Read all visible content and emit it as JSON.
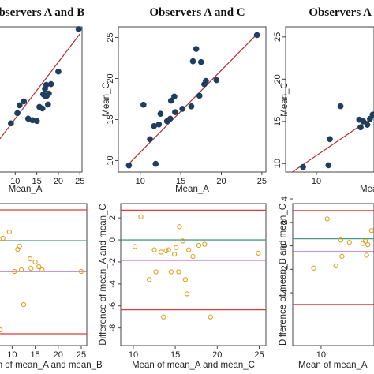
{
  "titles": [
    "Observers A and B",
    "Observers A and C",
    "Observers A and D"
  ],
  "chart_data": [
    {
      "type": "scatter",
      "panel": "scatter-AB",
      "title": "Observers A and B",
      "xlabel": "Mean_A",
      "ylabel": "",
      "xlim": [
        5,
        25.5
      ],
      "ylim": [
        8,
        26.5
      ],
      "xticks": [
        10,
        15,
        20,
        25
      ],
      "yticks": [],
      "points": [
        [
          9,
          14.2
        ],
        [
          10.5,
          15.5
        ],
        [
          11,
          16.5
        ],
        [
          12,
          17
        ],
        [
          13,
          14.8
        ],
        [
          14,
          14.6
        ],
        [
          15,
          14.5
        ],
        [
          15.6,
          16.3
        ],
        [
          16.3,
          16.1
        ],
        [
          16.5,
          17.9
        ],
        [
          16.9,
          17.7
        ],
        [
          16.9,
          18.6
        ],
        [
          17.2,
          19.1
        ],
        [
          17.3,
          17.7
        ],
        [
          17.6,
          16.6
        ],
        [
          17.8,
          18
        ],
        [
          18.3,
          19.2
        ],
        [
          20,
          20.8
        ],
        [
          24.7,
          26.2
        ]
      ],
      "line": [
        [
          5,
          11.2
        ],
        [
          25,
          25.6
        ]
      ]
    },
    {
      "type": "scatter",
      "panel": "scatter-AC",
      "title": "Observers A and C",
      "xlabel": "Mean_A",
      "ylabel": "Mean_C",
      "xlim": [
        7.3,
        25.5
      ],
      "ylim": [
        8.6,
        26.3
      ],
      "xticks": [
        10,
        15,
        20,
        25
      ],
      "yticks": [
        10,
        15,
        20,
        25
      ],
      "points": [
        [
          8.6,
          9.4
        ],
        [
          10.4,
          16.8
        ],
        [
          11.2,
          12.6
        ],
        [
          11.7,
          14.2
        ],
        [
          11.9,
          9.6
        ],
        [
          12.3,
          14.4
        ],
        [
          12.5,
          15.7
        ],
        [
          13.3,
          14.8
        ],
        [
          13.7,
          15.1
        ],
        [
          13.8,
          17.3
        ],
        [
          14.2,
          17.8
        ],
        [
          14.3,
          15.9
        ],
        [
          15.2,
          16.3
        ],
        [
          16.3,
          16.6
        ],
        [
          16.5,
          22.1
        ],
        [
          16.9,
          23.6
        ],
        [
          17.3,
          17.9
        ],
        [
          17.5,
          22
        ],
        [
          17.9,
          19.3
        ],
        [
          18.1,
          19.7
        ],
        [
          19.4,
          19.8
        ],
        [
          24.4,
          25.3
        ]
      ],
      "line": [
        [
          8.6,
          9.6
        ],
        [
          24.4,
          25.4
        ]
      ]
    },
    {
      "type": "scatter",
      "panel": "scatter-AD",
      "title": "Observers A and D",
      "xlabel": "Mean_A",
      "ylabel": "Mean_C",
      "xlim": [
        7.7,
        14.3
      ],
      "ylim": [
        9,
        26.2
      ],
      "xticks": [
        10
      ],
      "yticks": [
        10,
        15,
        20,
        25
      ],
      "points": [
        [
          9,
          9.6
        ],
        [
          10.9,
          9.8
        ],
        [
          11,
          12.9
        ],
        [
          11.8,
          16.8
        ],
        [
          13.2,
          15.2
        ],
        [
          13.3,
          14.3
        ],
        [
          13.5,
          15
        ],
        [
          13.8,
          14.6
        ],
        [
          14,
          15.3
        ],
        [
          14.2,
          15.8
        ]
      ],
      "line": [
        [
          8.2,
          9
        ],
        [
          14.3,
          15.6
        ]
      ]
    },
    {
      "type": "scatter",
      "panel": "diff-AB",
      "title": "",
      "xlabel": "Mean of mean_A and mean_B",
      "ylabel": "",
      "xlim": [
        6,
        26.2
      ],
      "ylim": [
        -6,
        3
      ],
      "xticks": [
        10,
        15,
        20,
        25
      ],
      "yticks": [],
      "hlines": [
        {
          "y": 2.6,
          "color": "#e03a3a"
        },
        {
          "y": 0.65,
          "color": "#4e9a8a"
        },
        {
          "y": -1.3,
          "color": "#b04fc8"
        },
        {
          "y": -5.25,
          "color": "#e03a3a"
        }
      ],
      "points": [
        [
          6.5,
          -3.8
        ],
        [
          6.4,
          -2.5
        ],
        [
          6.6,
          -1.6
        ],
        [
          7.4,
          -5
        ],
        [
          8,
          0.8
        ],
        [
          9.4,
          1.2
        ],
        [
          10.5,
          -1.3
        ],
        [
          11.2,
          0.1
        ],
        [
          11.6,
          0.3
        ],
        [
          12,
          -1.2
        ],
        [
          12.5,
          -3.4
        ],
        [
          13.9,
          -0.5
        ],
        [
          14.1,
          -1.1
        ],
        [
          15,
          -0.7
        ],
        [
          15.8,
          -1
        ],
        [
          16.5,
          -1.2
        ],
        [
          25,
          -1.3
        ]
      ]
    },
    {
      "type": "scatter",
      "panel": "diff-AC",
      "title": "",
      "xlabel": "Mean of mean_A and mean_C",
      "ylabel": "Difference of mean_A and mean_C",
      "xlim": [
        8.5,
        25.8
      ],
      "ylim": [
        -9.6,
        3.3
      ],
      "xticks": [
        10,
        15,
        20,
        25
      ],
      "yticks": [
        -8,
        -6,
        -4,
        -2,
        0,
        2
      ],
      "hlines": [
        {
          "y": 2.7,
          "color": "#e03a3a"
        },
        {
          "y": 0,
          "color": "#4e9a8a"
        },
        {
          "y": -1.85,
          "color": "#b04fc8"
        },
        {
          "y": -6.35,
          "color": "#e03a3a"
        }
      ],
      "points": [
        [
          10.2,
          -0.6
        ],
        [
          10.9,
          2.1
        ],
        [
          11.9,
          -3.6
        ],
        [
          12.5,
          -0.9
        ],
        [
          12.7,
          -2.9
        ],
        [
          13.3,
          -1.1
        ],
        [
          13.6,
          -7
        ],
        [
          13.9,
          -1
        ],
        [
          14.2,
          -0.9
        ],
        [
          14.5,
          -2.9
        ],
        [
          14.9,
          -1.3
        ],
        [
          15.1,
          -0.7
        ],
        [
          15.4,
          -2.9
        ],
        [
          15.5,
          1.2
        ],
        [
          15.9,
          -0.1
        ],
        [
          16.2,
          -3.6
        ],
        [
          16.4,
          -4.9
        ],
        [
          16.6,
          -0.9
        ],
        [
          17.1,
          -1.5
        ],
        [
          17.8,
          -0.5
        ],
        [
          18.5,
          -0.4
        ],
        [
          19.2,
          -7
        ],
        [
          24.9,
          -1.2
        ]
      ]
    },
    {
      "type": "scatter",
      "panel": "diff-AD",
      "title": "",
      "xlabel": "Mean of mean_A",
      "ylabel": "Difference of mean_B and mean_C",
      "xlim": [
        7.7,
        14.3
      ],
      "ylim": [
        -8.5,
        3.6
      ],
      "xticks": [
        10
      ],
      "yticks": [
        -4,
        -2,
        0,
        2,
        4
      ],
      "hlines": [
        {
          "y": 3,
          "color": "#e03a3a"
        },
        {
          "y": 0.6,
          "color": "#4e9a8a"
        },
        {
          "y": -0.5,
          "color": "#b04fc8"
        },
        {
          "y": -5,
          "color": "#e03a3a"
        }
      ],
      "points": [
        [
          9.4,
          -1.9
        ],
        [
          10.5,
          2.3
        ],
        [
          11.2,
          -1.7
        ],
        [
          11.6,
          0.5
        ],
        [
          11.7,
          -0.9
        ],
        [
          12.3,
          0.3
        ],
        [
          13.4,
          0.2
        ],
        [
          13.6,
          0.4
        ],
        [
          13.7,
          -0.8
        ],
        [
          13.8,
          0.1
        ],
        [
          14.1,
          1.3
        ]
      ]
    }
  ],
  "colors": {
    "scatter_fill": "#1f3d60",
    "fit_line": "#b0302c",
    "diff_marker": "#e0a020"
  }
}
